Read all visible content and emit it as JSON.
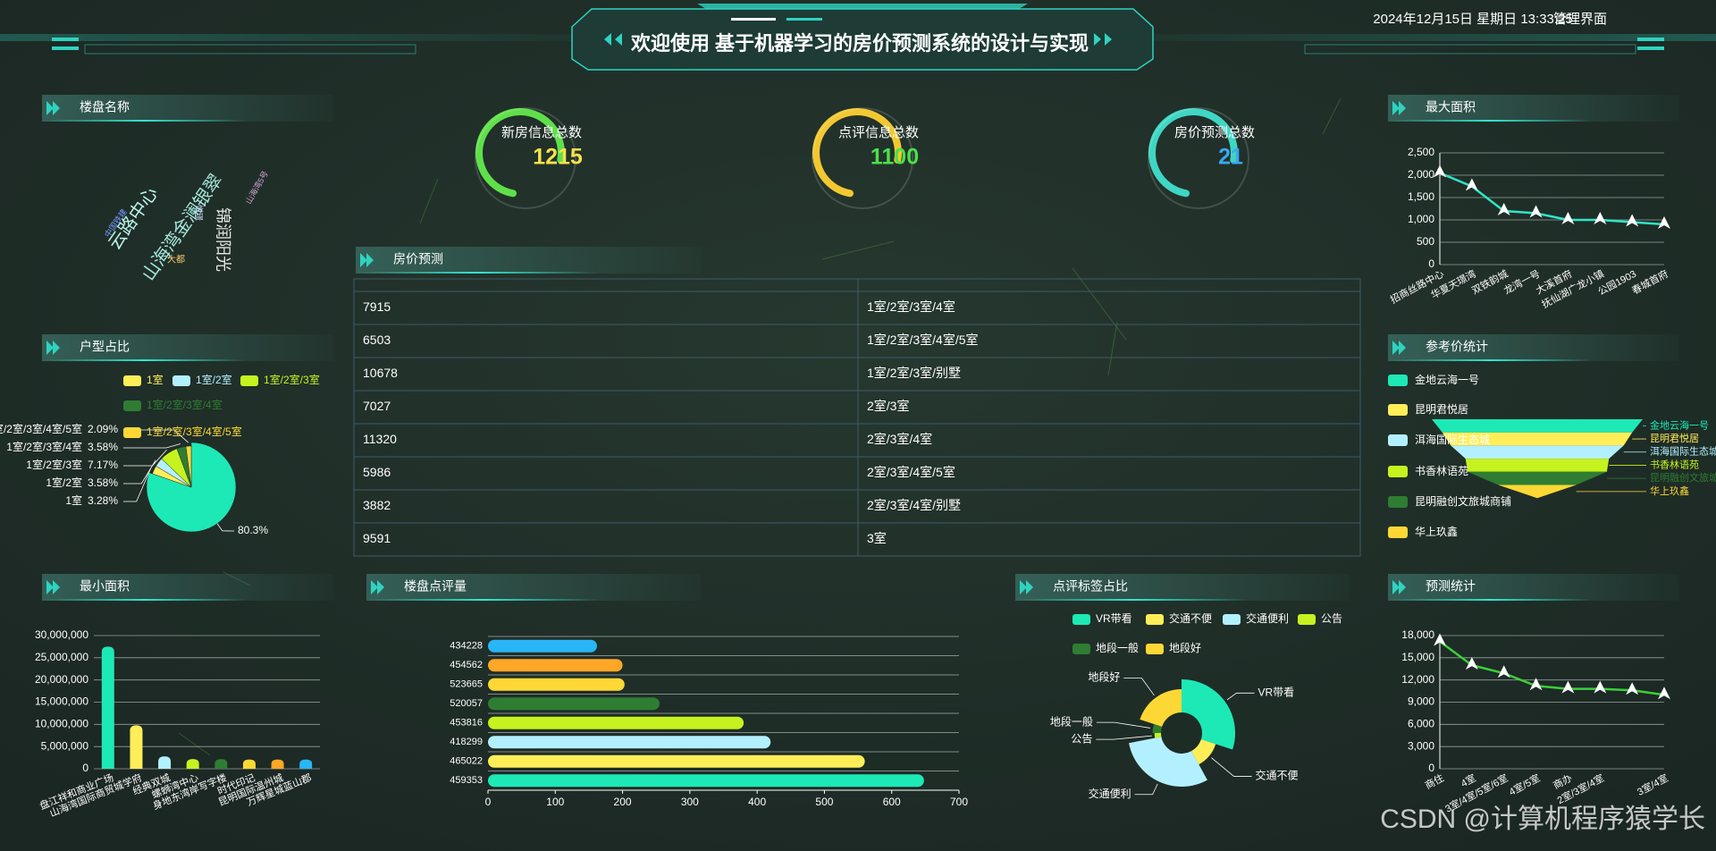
{
  "header": {
    "title": "欢迎使用 基于机器学习的房价预测系统的设计与实现",
    "datetime": "2024年12月15日 星期日 13:33:25",
    "role": "管理界面"
  },
  "stats": [
    {
      "label": "新房信息总数",
      "value": 1215,
      "ring_color": "#5fe04a",
      "value_color": "#f7e24a"
    },
    {
      "label": "点评信息总数",
      "value": 1100,
      "ring_color": "#f2c832",
      "value_color": "#4be04a"
    },
    {
      "label": "房价预测总数",
      "value": 21,
      "ring_color": "#3fd6c4",
      "value_color": "#3aa8f0"
    }
  ],
  "wordcloud": {
    "title": "楼盘名称",
    "words": [
      "云路中心",
      "山海湾金澜银翠",
      "锦润阳光",
      "大都",
      "悦璟",
      "中国铁建",
      "山海湾5号"
    ]
  },
  "table": {
    "title": "房价预测",
    "rows": [
      [
        7915,
        "1室/2室/3室/4室"
      ],
      [
        6503,
        "1室/2室/3室/4室/5室"
      ],
      [
        10678,
        "1室/2室/3室/别墅"
      ],
      [
        7027,
        "2室/3室"
      ],
      [
        11320,
        "2室/3室/4室"
      ],
      [
        5986,
        "2室/3室/4室/5室"
      ],
      [
        3882,
        "2室/3室/4室/别墅"
      ],
      [
        9591,
        "3室"
      ]
    ]
  },
  "watermark": "CSDN @计算机程序猿学长",
  "chart_data": [
    {
      "type": "pie",
      "title": "户型占比",
      "categories": [
        null,
        "1室",
        "1室/2室",
        "1室/2室/3室",
        "1室/2室/3室/4室",
        "1室/2室/3室/4室/5室"
      ],
      "values": [
        80.3,
        3.28,
        3.58,
        7.17,
        3.58,
        2.09
      ],
      "value_labels": [
        "80.3%",
        "3.28%",
        "3.58%",
        "7.17%",
        "3.58%",
        "2.09%"
      ],
      "colors": [
        "#1de9b6",
        "#ffee58",
        "#b3f0ff",
        "#c6f21f",
        "#2e7d32",
        "#fdd835"
      ]
    },
    {
      "type": "bar",
      "title": "最小面积",
      "categories": [
        "盘江祥和商业广场",
        "山海湾国际商贸城学府",
        "经典双城",
        "螺蛳湾中心",
        "身地东湾岸写字楼",
        "时代印记",
        "昆明国际温州城",
        "万辉星城蓝山郡"
      ],
      "values": [
        27500000,
        9800000,
        2800000,
        2200000,
        2200000,
        2100000,
        2100000,
        2100000
      ],
      "colors": [
        "#1de9b6",
        "#ffee58",
        "#b3f0ff",
        "#c6f21f",
        "#2e7d32",
        "#fdd835",
        "#ffa726",
        "#29b6f6"
      ],
      "ylim": [
        0,
        30000000
      ],
      "yticks": [
        0,
        {
          "value": 5000000,
          "label": "5,000,000"
        },
        {
          "value": 10000000,
          "label": "10,000,000"
        },
        {
          "value": 15000000,
          "label": "15,000,000"
        },
        {
          "value": 20000000,
          "label": "20,000,000"
        },
        {
          "value": 25000000,
          "label": "25,000,000"
        },
        {
          "value": 30000000,
          "label": "30,000,000"
        }
      ],
      "grid": true
    },
    {
      "type": "hbar",
      "title": "楼盘点评量",
      "categories": [
        "434228",
        "454562",
        "523665",
        "520057",
        "453816",
        "418299",
        "465022",
        "459353"
      ],
      "values": [
        162,
        200,
        203,
        255,
        380,
        420,
        560,
        648
      ],
      "colors": [
        "#29b6f6",
        "#ffa726",
        "#fdd835",
        "#2e7d32",
        "#c6f21f",
        "#b3f0ff",
        "#ffee58",
        "#1de9b6"
      ],
      "xlim": [
        0,
        700
      ],
      "xticks": [
        0,
        100,
        200,
        300,
        400,
        500,
        600,
        700
      ]
    },
    {
      "type": "rose",
      "title": "点评标签占比",
      "categories": [
        "VR带看",
        "交通不便",
        "交通便利",
        "公告",
        "地段一般",
        "地段好"
      ],
      "values": [
        30,
        12,
        30,
        3,
        5,
        20
      ],
      "colors": [
        "#1de9b6",
        "#ffee58",
        "#b3f0ff",
        "#c6f21f",
        "#2e7d32",
        "#fdd835"
      ]
    },
    {
      "type": "line",
      "title": "最大面积",
      "categories": [
        "招商丝路中心",
        "华夏天璟湾",
        "双铁韵城",
        "龙湾一号",
        "大溪首府",
        "抚仙湖广龙小镇",
        "公园1903",
        "春城首府"
      ],
      "values": [
        2050,
        1750,
        1200,
        1150,
        1000,
        1000,
        950,
        900
      ],
      "color": "#2ee6c8",
      "ylim": [
        0,
        2500
      ],
      "yticks": [
        0,
        500,
        {
          "value": 1000,
          "label": "1,000"
        },
        {
          "value": 1500,
          "label": "1,500"
        },
        {
          "value": 2000,
          "label": "2,000"
        },
        {
          "value": 2500,
          "label": "2,500"
        }
      ],
      "grid": true
    },
    {
      "type": "funnel",
      "title": "参考价统计",
      "categories": [
        "金地云海一号",
        "昆明君悦居",
        "洱海国际生态城",
        "书香林语苑",
        "昆明融创文旅城商铺",
        "华上玖鑫"
      ],
      "values": [
        100,
        90,
        82,
        68,
        66,
        37
      ],
      "colors": [
        "#1de9b6",
        "#ffee58",
        "#b3f0ff",
        "#c6f21f",
        "#2e7d32",
        "#fdd835"
      ]
    },
    {
      "type": "line",
      "title": "预测统计",
      "categories": [
        "商住",
        "4室",
        "3室/4室/5室/6室",
        "4室/5室",
        "商办",
        "2室/3室/4室",
        null,
        "3室/4室"
      ],
      "values": [
        17200,
        14000,
        12900,
        11200,
        10800,
        10800,
        10600,
        10000
      ],
      "color": "#3ccf3a",
      "ylim": [
        0,
        18000
      ],
      "yticks": [
        0,
        {
          "value": 3000,
          "label": "3,000"
        },
        {
          "value": 6000,
          "label": "6,000"
        },
        {
          "value": 9000,
          "label": "9,000"
        },
        {
          "value": 12000,
          "label": "12,000"
        },
        {
          "value": 15000,
          "label": "15,000"
        },
        {
          "value": 18000,
          "label": "18,000"
        }
      ],
      "grid": true
    }
  ]
}
